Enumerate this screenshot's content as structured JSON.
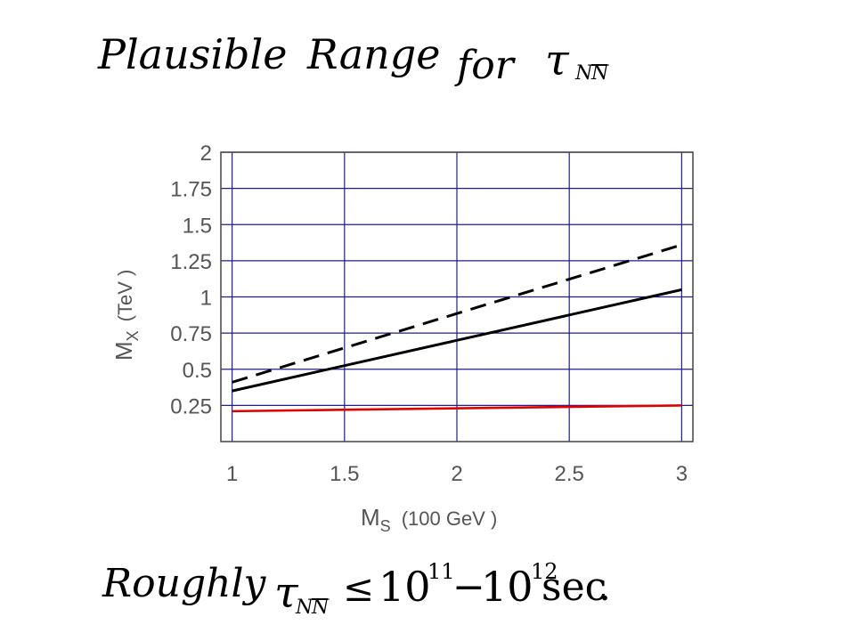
{
  "heading": {
    "word1": "Plausible",
    "word2": "Range",
    "word3": "for",
    "tau": "τ",
    "subscript_n": "N",
    "subscript_nbar": "N"
  },
  "footer": {
    "word": "Roughly",
    "tau": "τ",
    "subscript_n": "N",
    "subscript_nbar": "N",
    "relation": "≤",
    "base1": "10",
    "exp1": "11",
    "dash": "−",
    "base2": "10",
    "exp2": "12",
    "unit": "sec",
    "period": "."
  },
  "chart_data": {
    "type": "line",
    "xlabel": "M",
    "xlabel_sub": "S",
    "xlabel_unit": "(100  GeV )",
    "ylabel": "M",
    "ylabel_sub": "X",
    "ylabel_unit": "(TeV )",
    "xlim": [
      0.95,
      3.05
    ],
    "ylim": [
      0,
      2
    ],
    "xticks": [
      1,
      1.5,
      2,
      2.5,
      3
    ],
    "xtick_labels": [
      "1",
      "1.5",
      "2",
      "2.5",
      "3"
    ],
    "yticks": [
      0.25,
      0.5,
      0.75,
      1,
      1.25,
      1.5,
      1.75,
      2
    ],
    "ytick_labels": [
      "0.25",
      "0.5",
      "0.75",
      "1",
      "1.25",
      "1.5",
      "1.75",
      "2"
    ],
    "grid": true,
    "grid_color": "#1e1e8c",
    "series": [
      {
        "style": "dashed",
        "color": "#000000",
        "x": [
          1,
          3
        ],
        "y": [
          0.41,
          1.36
        ]
      },
      {
        "style": "solid",
        "color": "#000000",
        "x": [
          1,
          3
        ],
        "y": [
          0.35,
          1.05
        ]
      },
      {
        "style": "solid",
        "color": "#e00000",
        "x": [
          1,
          3
        ],
        "y": [
          0.21,
          0.25
        ]
      }
    ]
  }
}
